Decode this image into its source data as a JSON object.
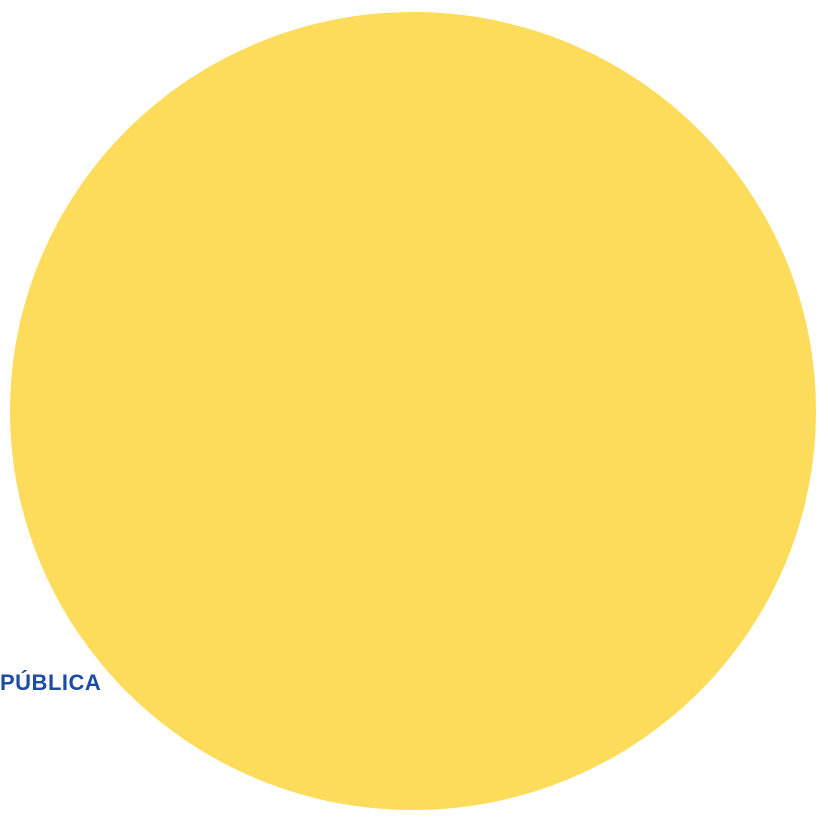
{
  "canvas": {
    "background_color": "#ffffff"
  },
  "circle": {
    "fill_color": "#fddc5c"
  },
  "corner_label": {
    "text": "PÚBLICA",
    "color": "#1f4aa5"
  }
}
